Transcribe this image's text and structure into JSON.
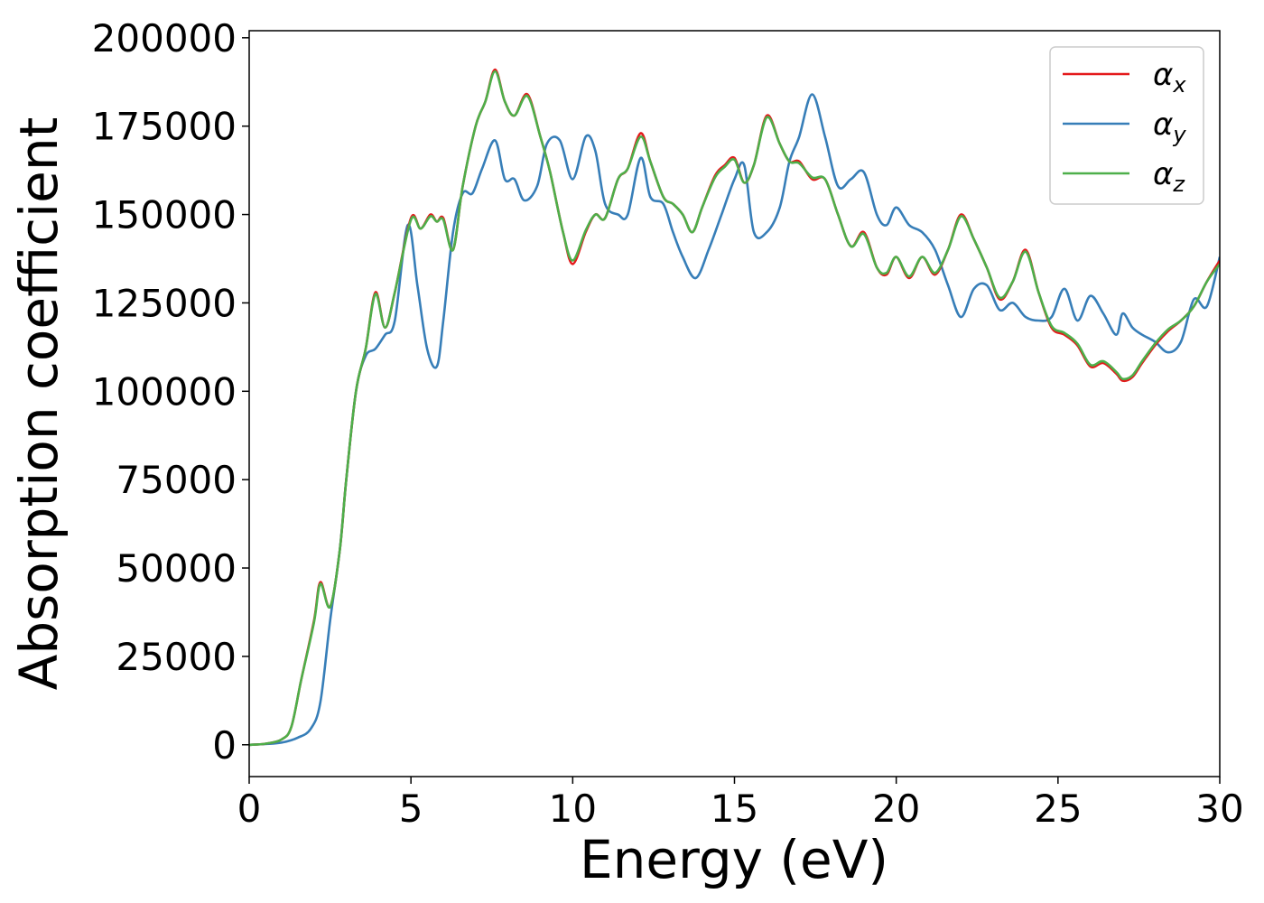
{
  "chart_data": {
    "type": "line",
    "xlabel": "Energy (eV)",
    "ylabel": "Absorption coefficient",
    "xlim": [
      0,
      30
    ],
    "ylim": [
      -9000,
      202000
    ],
    "xticks": [
      0,
      5,
      10,
      15,
      20,
      25,
      30
    ],
    "yticks": [
      0,
      25000,
      50000,
      75000,
      100000,
      125000,
      150000,
      175000,
      200000
    ],
    "grid": false,
    "legend_position": "top-right",
    "series": [
      {
        "name": "αx",
        "symbol": "α",
        "subscript": "x",
        "color": "#e41a1c",
        "x": [
          0,
          0.5,
          1.0,
          1.3,
          1.6,
          2.0,
          2.2,
          2.5,
          2.8,
          3.0,
          3.3,
          3.6,
          3.9,
          4.2,
          4.5,
          5.0,
          5.3,
          5.6,
          5.8,
          6.0,
          6.3,
          6.6,
          7.0,
          7.3,
          7.6,
          7.9,
          8.2,
          8.6,
          9.0,
          9.3,
          9.7,
          10.0,
          10.4,
          10.7,
          11.0,
          11.4,
          11.7,
          12.1,
          12.4,
          12.8,
          13.1,
          13.4,
          13.7,
          14.0,
          14.4,
          14.7,
          15.0,
          15.3,
          15.6,
          16.0,
          16.4,
          16.7,
          17.0,
          17.4,
          17.8,
          18.2,
          18.6,
          19.0,
          19.4,
          19.7,
          20.0,
          20.4,
          20.8,
          21.2,
          21.6,
          22.0,
          22.4,
          22.8,
          23.2,
          23.6,
          24.0,
          24.4,
          24.8,
          25.2,
          25.6,
          26.0,
          26.4,
          26.8,
          27.0,
          27.3,
          27.6,
          28.0,
          28.4,
          28.8,
          29.2,
          29.6,
          30.0
        ],
        "values": [
          0,
          300,
          1500,
          5000,
          18000,
          35000,
          46000,
          39000,
          55000,
          75000,
          100000,
          112000,
          128000,
          118000,
          128000,
          149000,
          146000,
          150000,
          148000,
          149000,
          140000,
          158000,
          175000,
          182000,
          191000,
          182000,
          178000,
          184000,
          172000,
          162000,
          145000,
          136000,
          145000,
          150000,
          149000,
          160000,
          163000,
          173000,
          165000,
          155000,
          153000,
          150000,
          145000,
          152000,
          161000,
          164000,
          166000,
          159000,
          164000,
          178000,
          170000,
          165000,
          165000,
          160000,
          160000,
          150000,
          141000,
          145000,
          135000,
          133000,
          138000,
          132000,
          138000,
          133000,
          140000,
          150000,
          143000,
          135000,
          126000,
          131000,
          140000,
          128000,
          118000,
          116000,
          113000,
          107000,
          108000,
          105000,
          103000,
          104000,
          108000,
          113000,
          117000,
          120000,
          124000,
          131000,
          137000
        ]
      },
      {
        "name": "αy",
        "symbol": "α",
        "subscript": "y",
        "color": "#377eb8",
        "x": [
          0,
          0.5,
          1.0,
          1.5,
          1.9,
          2.2,
          2.5,
          2.8,
          3.0,
          3.3,
          3.6,
          3.9,
          4.2,
          4.5,
          4.9,
          5.2,
          5.5,
          5.8,
          6.0,
          6.3,
          6.6,
          6.9,
          7.2,
          7.6,
          7.9,
          8.2,
          8.5,
          8.9,
          9.2,
          9.6,
          10.0,
          10.4,
          10.7,
          11.0,
          11.4,
          11.7,
          12.1,
          12.4,
          12.8,
          13.1,
          13.4,
          13.8,
          14.2,
          14.6,
          15.0,
          15.3,
          15.6,
          16.0,
          16.4,
          16.7,
          17.0,
          17.4,
          17.8,
          18.2,
          18.6,
          19.0,
          19.4,
          19.7,
          20.0,
          20.4,
          20.8,
          21.2,
          21.6,
          22.0,
          22.4,
          22.8,
          23.2,
          23.6,
          24.0,
          24.4,
          24.8,
          25.2,
          25.6,
          26.0,
          26.4,
          26.8,
          27.0,
          27.3,
          27.6,
          28.0,
          28.4,
          28.8,
          29.2,
          29.6,
          30.0
        ],
        "values": [
          0,
          200,
          600,
          2000,
          4500,
          12000,
          35000,
          55000,
          75000,
          100000,
          110000,
          112000,
          116000,
          120000,
          147000,
          130000,
          112000,
          107000,
          120000,
          145000,
          156000,
          156000,
          163000,
          171000,
          160000,
          160000,
          154000,
          158000,
          170000,
          171000,
          160000,
          172000,
          168000,
          153000,
          150000,
          150000,
          166000,
          155000,
          153000,
          145000,
          138000,
          132000,
          140000,
          150000,
          160000,
          164000,
          145000,
          145000,
          152000,
          165000,
          172000,
          184000,
          172000,
          158000,
          160000,
          162000,
          150000,
          147000,
          152000,
          147000,
          145000,
          140000,
          130000,
          121000,
          129000,
          130000,
          123000,
          125000,
          121000,
          120000,
          121000,
          129000,
          120000,
          127000,
          122000,
          116000,
          122000,
          118000,
          116000,
          114000,
          111000,
          114000,
          126000,
          124000,
          138000
        ]
      },
      {
        "name": "αz",
        "symbol": "α",
        "subscript": "z",
        "color": "#4daf4a",
        "x": [
          0,
          0.5,
          1.0,
          1.3,
          1.6,
          2.0,
          2.2,
          2.5,
          2.8,
          3.0,
          3.3,
          3.6,
          3.9,
          4.2,
          4.5,
          5.0,
          5.3,
          5.6,
          5.8,
          6.0,
          6.3,
          6.6,
          7.0,
          7.3,
          7.6,
          7.9,
          8.2,
          8.6,
          9.0,
          9.3,
          9.7,
          10.0,
          10.4,
          10.7,
          11.0,
          11.4,
          11.7,
          12.1,
          12.4,
          12.8,
          13.1,
          13.4,
          13.7,
          14.0,
          14.4,
          14.7,
          15.0,
          15.3,
          15.6,
          16.0,
          16.4,
          16.7,
          17.0,
          17.4,
          17.8,
          18.2,
          18.6,
          19.0,
          19.4,
          19.7,
          20.0,
          20.4,
          20.8,
          21.2,
          21.6,
          22.0,
          22.4,
          22.8,
          23.2,
          23.6,
          24.0,
          24.4,
          24.8,
          25.2,
          25.6,
          26.0,
          26.4,
          26.8,
          27.0,
          27.3,
          27.6,
          28.0,
          28.4,
          28.8,
          29.2,
          29.6,
          30.0
        ],
        "values": [
          0,
          300,
          1500,
          5000,
          18000,
          34500,
          45500,
          39000,
          55000,
          75000,
          100000,
          112000,
          127500,
          118000,
          128000,
          148500,
          146000,
          149500,
          148000,
          148500,
          140000,
          158000,
          175000,
          182000,
          190500,
          182000,
          178000,
          183500,
          172000,
          162000,
          145000,
          137000,
          145500,
          150000,
          149000,
          160000,
          163000,
          172000,
          165000,
          155000,
          153000,
          150000,
          145000,
          152000,
          160500,
          163500,
          165500,
          159000,
          164000,
          177500,
          170000,
          165000,
          164500,
          160500,
          160000,
          150000,
          141000,
          144500,
          135000,
          133500,
          138000,
          132500,
          138000,
          133500,
          140000,
          149500,
          143000,
          135000,
          126500,
          131000,
          139500,
          128000,
          118500,
          116500,
          113500,
          107500,
          108500,
          105500,
          103500,
          104500,
          108500,
          113500,
          117500,
          120000,
          124000,
          131000,
          136000
        ]
      }
    ]
  }
}
